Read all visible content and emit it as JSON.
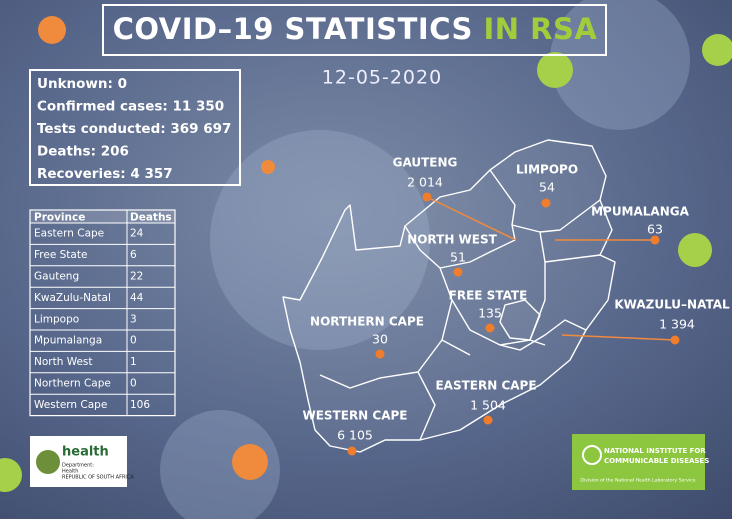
{
  "title": {
    "main": "COVID–19 STATISTICS",
    "highlight": "IN RSA"
  },
  "date": "12-05-2020",
  "summary": [
    {
      "label": "Unknown:",
      "value": "0"
    },
    {
      "label": "Confirmed cases:",
      "value": "11 350"
    },
    {
      "label": "Tests conducted:",
      "value": "369 697"
    },
    {
      "label": "Deaths:",
      "value": "206"
    },
    {
      "label": "Recoveries:",
      "value": "4 357"
    }
  ],
  "table": {
    "header": [
      "Province",
      "Deaths"
    ],
    "rows": [
      [
        "Eastern Cape",
        "24"
      ],
      [
        "Free State",
        "6"
      ],
      [
        "Gauteng",
        "22"
      ],
      [
        "KwaZulu-Natal",
        "44"
      ],
      [
        "Limpopo",
        "3"
      ],
      [
        "Mpumalanga",
        "0"
      ],
      [
        "North West",
        "1"
      ],
      [
        "Northern Cape",
        "0"
      ],
      [
        "Western Cape",
        "106"
      ]
    ]
  },
  "map_labels": [
    {
      "name": "GAUTENG",
      "value": "2 014"
    },
    {
      "name": "LIMPOPO",
      "value": "54"
    },
    {
      "name": "MPUMALANGA",
      "value": "63"
    },
    {
      "name": "NORTH WEST",
      "value": "51"
    },
    {
      "name": "FREE STATE",
      "value": "135"
    },
    {
      "name": "KWAZULU–NATAL",
      "value": "1 394"
    },
    {
      "name": "NORTHERN CAPE",
      "value": "30"
    },
    {
      "name": "EASTERN CAPE",
      "value": "1 504"
    },
    {
      "name": "WESTERN CAPE",
      "value": "6 105"
    }
  ],
  "logos": {
    "health": {
      "title": "health",
      "lines": [
        "Department:",
        "Health",
        "REPUBLIC OF SOUTH AFRICA"
      ]
    },
    "nicd": {
      "line1": "NATIONAL INSTITUTE FOR",
      "line2": "COMMUNICABLE DISEASES",
      "sub": "Division of the National Health Laboratory Service"
    }
  }
}
